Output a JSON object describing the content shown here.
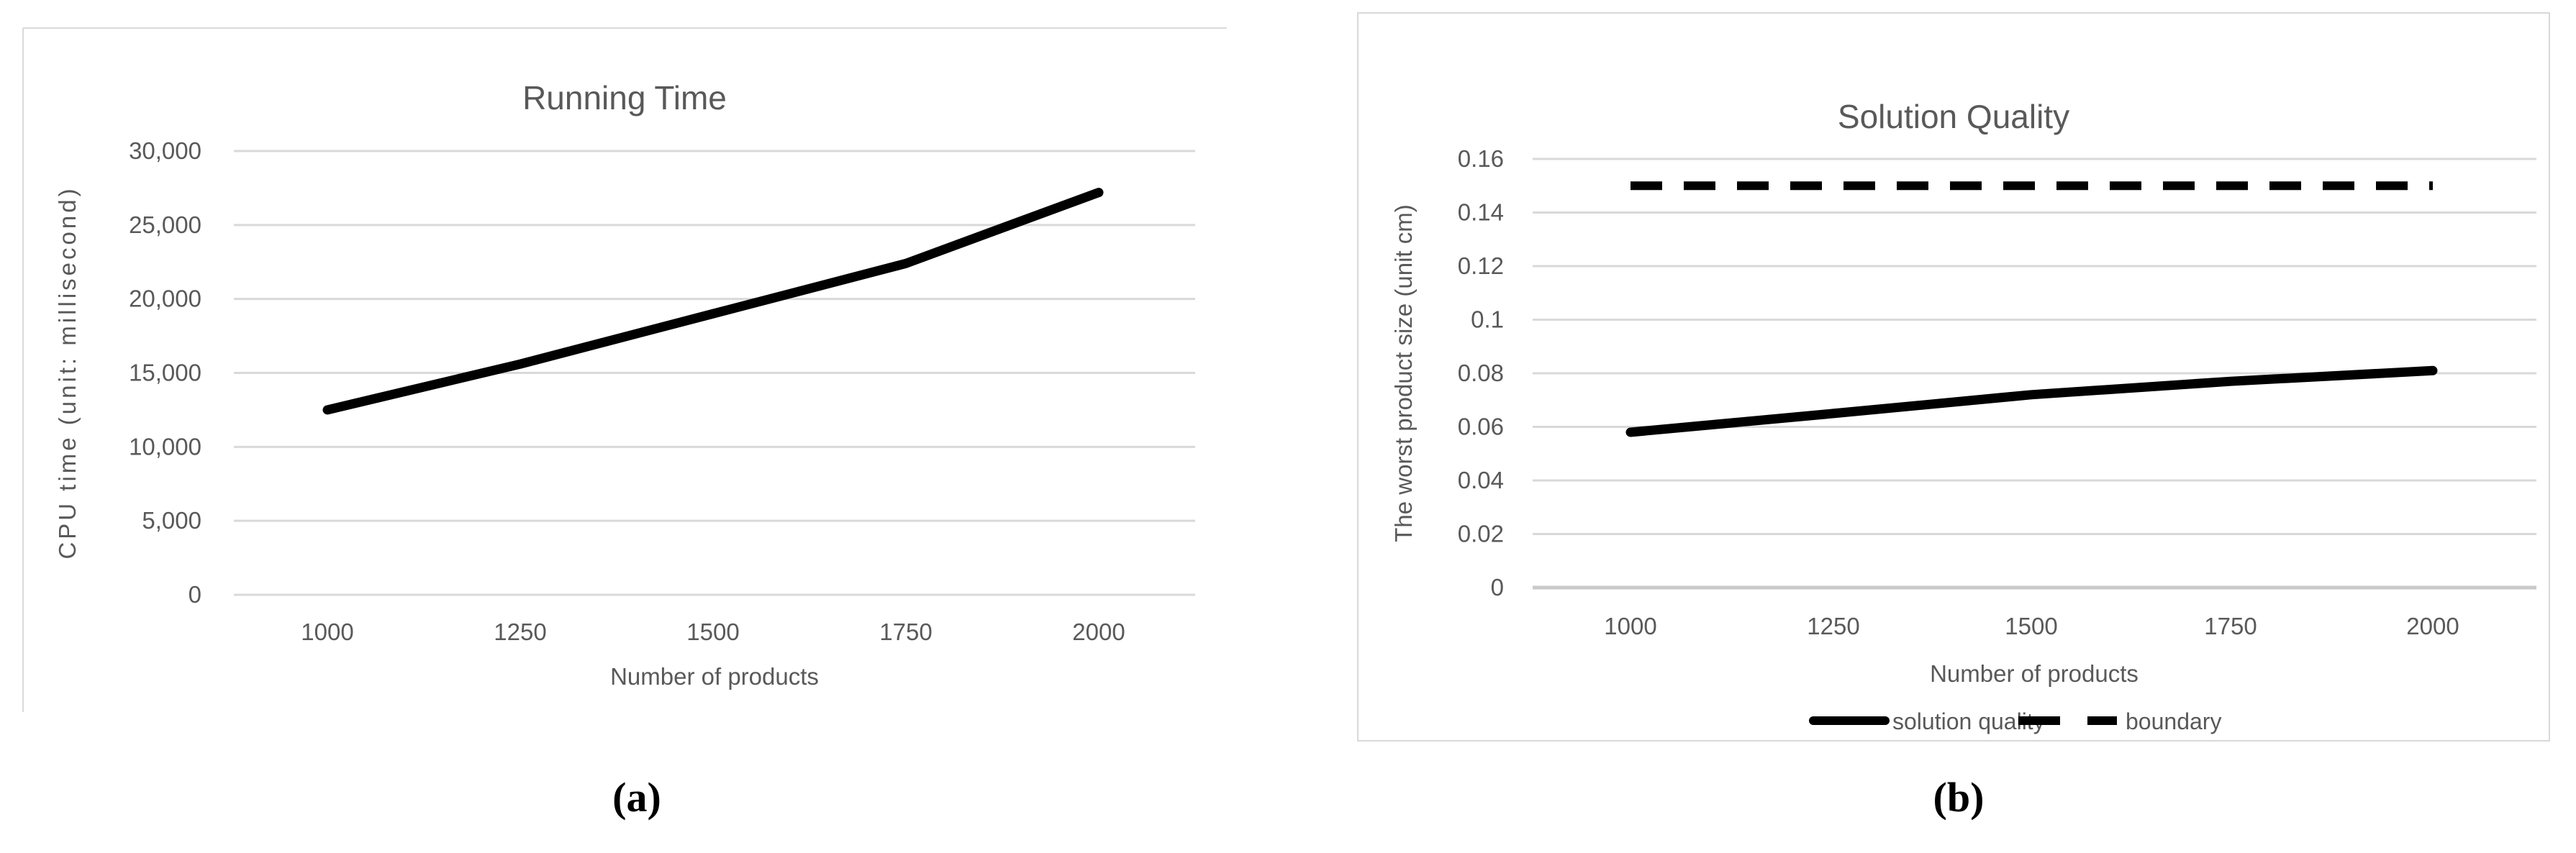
{
  "captions": {
    "a": "(a)",
    "b": "(b)"
  },
  "colors": {
    "text": "#595959",
    "gridline": "#d9d9d9",
    "axis_line": "#c9c9c9",
    "series": "#000000",
    "frame": "#d9d9d9",
    "background": "#ffffff"
  },
  "chart_data": [
    {
      "type": "line",
      "title": "Running Time",
      "xlabel": "Number of products",
      "ylabel": "CPU time (unit: millisecond)",
      "categories": [
        "1000",
        "1250",
        "1500",
        "1750",
        "2000"
      ],
      "series": [
        {
          "name": "CPU time",
          "style": "solid",
          "values": [
            12500,
            15600,
            19000,
            22400,
            27200
          ]
        }
      ],
      "ylim": [
        0,
        30000
      ],
      "y_tick_step": 5000,
      "y_tick_labels": [
        "0",
        "5,000",
        "10,000",
        "15,000",
        "20,000",
        "25,000",
        "30,000"
      ],
      "grid": true,
      "legend": "none"
    },
    {
      "type": "line",
      "title": "Solution Quality",
      "xlabel": "Number of products",
      "ylabel": "The worst product size (unit cm)",
      "categories": [
        "1000",
        "1250",
        "1500",
        "1750",
        "2000"
      ],
      "series": [
        {
          "name": "solution quality",
          "style": "solid",
          "values": [
            0.058,
            0.065,
            0.072,
            0.077,
            0.081
          ]
        },
        {
          "name": "boundary",
          "style": "dashed",
          "values": [
            0.15,
            0.15,
            0.15,
            0.15,
            0.15
          ]
        }
      ],
      "ylim": [
        0,
        0.16
      ],
      "y_tick_step": 0.02,
      "y_tick_labels": [
        "0",
        "0.02",
        "0.04",
        "0.06",
        "0.08",
        "0.1",
        "0.12",
        "0.14",
        "0.16"
      ],
      "grid": true,
      "legend": "bottom"
    }
  ]
}
